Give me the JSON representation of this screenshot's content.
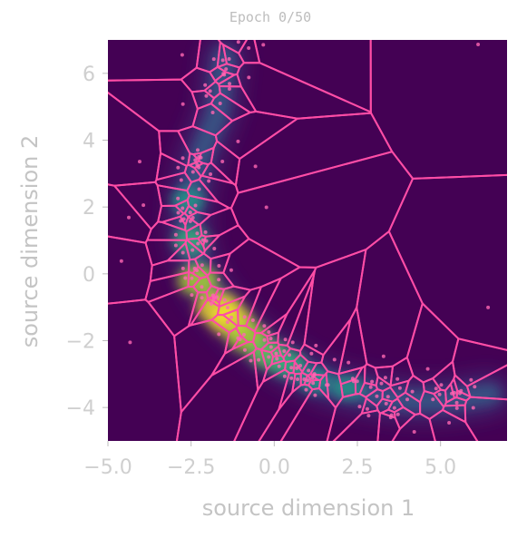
{
  "chart_data": {
    "type": "heatmap",
    "title": "Epoch 0/50",
    "xlabel": "source dimension 1",
    "ylabel": "source dimension 2",
    "xlim": [
      -5.0,
      7.0
    ],
    "ylim": [
      -5.0,
      7.0
    ],
    "x_ticks": [
      -5.0,
      -2.5,
      0.0,
      2.5,
      5.0
    ],
    "x_tick_labels": [
      "−5.0",
      "−2.5",
      "0.0",
      "2.5",
      "5.0"
    ],
    "y_ticks": [
      -4,
      -2,
      0,
      2,
      4,
      6
    ],
    "y_tick_labels": [
      "−4",
      "−2",
      "0",
      "2",
      "4",
      "6"
    ],
    "grid": false,
    "colormap": "viridis",
    "background_color": "#440154",
    "voronoi_color": "#ff4da6",
    "density_ridge": [
      {
        "x": -1.5,
        "y": 6.5
      },
      {
        "x": -1.7,
        "y": 4.8
      },
      {
        "x": -2.2,
        "y": 3.6
      },
      {
        "x": -2.5,
        "y": 2.5
      },
      {
        "x": -2.6,
        "y": 1.5
      },
      {
        "x": -2.4,
        "y": 0.5
      },
      {
        "x": -2.1,
        "y": -0.3
      },
      {
        "x": -1.6,
        "y": -1.0
      },
      {
        "x": -0.9,
        "y": -1.7
      },
      {
        "x": -0.2,
        "y": -2.3
      },
      {
        "x": 0.6,
        "y": -2.8
      },
      {
        "x": 1.6,
        "y": -3.3
      },
      {
        "x": 2.8,
        "y": -3.6
      },
      {
        "x": 4.0,
        "y": -3.8
      },
      {
        "x": 5.2,
        "y": -3.8
      },
      {
        "x": 6.5,
        "y": -3.6
      }
    ],
    "density_peaks": [
      {
        "x": -2.3,
        "y": -0.2,
        "level": 0.85
      },
      {
        "x": -1.7,
        "y": -1.0,
        "level": 1.0
      },
      {
        "x": -1.3,
        "y": -1.4,
        "level": 0.95
      },
      {
        "x": -0.8,
        "y": -1.9,
        "level": 0.85
      },
      {
        "x": -0.2,
        "y": -2.4,
        "level": 0.7
      },
      {
        "x": 0.4,
        "y": -2.7,
        "level": 0.6
      },
      {
        "x": -2.5,
        "y": 1.0,
        "level": 0.6
      },
      {
        "x": -2.6,
        "y": 2.2,
        "level": 0.45
      },
      {
        "x": 1.2,
        "y": -3.2,
        "level": 0.45
      },
      {
        "x": 2.2,
        "y": -3.4,
        "level": 0.35
      }
    ]
  }
}
